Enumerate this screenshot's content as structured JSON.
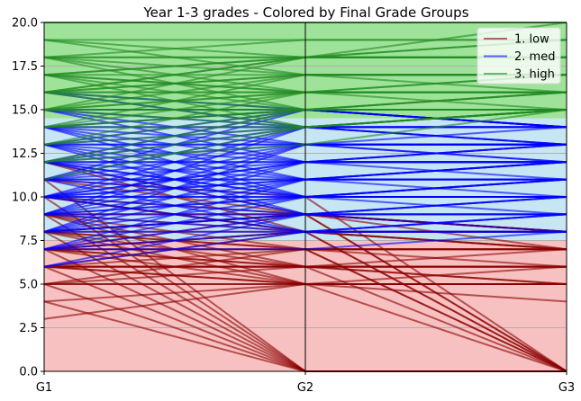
{
  "chart_data": {
    "type": "line",
    "title": "Year 1-3 grades - Colored by Final Grade Groups",
    "xlabel": "",
    "ylabel": "",
    "categories": [
      "G1",
      "G2",
      "G3"
    ],
    "ylim": [
      0.0,
      20.0
    ],
    "yticks": [
      "0.0",
      "2.5",
      "5.0",
      "7.5",
      "10.0",
      "12.5",
      "15.0",
      "17.5",
      "20.0"
    ],
    "grid_horizontal": true,
    "legend_position": "top-right",
    "bands": [
      {
        "group": "1. low",
        "from": 0,
        "to": 7.5,
        "color": "#f7c1c1"
      },
      {
        "group": "2. med",
        "from": 7.5,
        "to": 14.5,
        "color": "#c5e6f2"
      },
      {
        "group": "3. high",
        "from": 14.5,
        "to": 20,
        "color": "#9fe39a"
      }
    ],
    "groups": [
      {
        "name": "1. low",
        "color": "#8b0000",
        "lines": [
          [
            3,
            5,
            5
          ],
          [
            4,
            0,
            0
          ],
          [
            5,
            0,
            0
          ],
          [
            5,
            5,
            5
          ],
          [
            5,
            6,
            6
          ],
          [
            5,
            5,
            4
          ],
          [
            6,
            5,
            5
          ],
          [
            6,
            6,
            6
          ],
          [
            6,
            7,
            7
          ],
          [
            6,
            6,
            5
          ],
          [
            6,
            0,
            0
          ],
          [
            6,
            5,
            6
          ],
          [
            6,
            6,
            7
          ],
          [
            7,
            0,
            0
          ],
          [
            7,
            6,
            6
          ],
          [
            7,
            7,
            7
          ],
          [
            7,
            8,
            7
          ],
          [
            7,
            5,
            5
          ],
          [
            7,
            6,
            5
          ],
          [
            8,
            0,
            0
          ],
          [
            8,
            7,
            7
          ],
          [
            8,
            8,
            8
          ],
          [
            8,
            6,
            6
          ],
          [
            8,
            5,
            5
          ],
          [
            8,
            9,
            8
          ],
          [
            9,
            0,
            0
          ],
          [
            9,
            8,
            8
          ],
          [
            9,
            7,
            7
          ],
          [
            9,
            9,
            8
          ],
          [
            9,
            6,
            6
          ],
          [
            10,
            8,
            8
          ],
          [
            10,
            9,
            7
          ],
          [
            10,
            0,
            0
          ],
          [
            11,
            0,
            0
          ],
          [
            12,
            9,
            8
          ],
          [
            12,
            8,
            7
          ],
          [
            11,
            9,
            8
          ],
          [
            6,
            8,
            7
          ],
          [
            7,
            9,
            8
          ],
          [
            5,
            7,
            6
          ],
          [
            4,
            5,
            5
          ],
          [
            9,
            5,
            0
          ],
          [
            8,
            7,
            0
          ],
          [
            7,
            7,
            0
          ],
          [
            10,
            8,
            0
          ],
          [
            6,
            6,
            0
          ],
          [
            9,
            9,
            0
          ],
          [
            11,
            10,
            0
          ],
          [
            7,
            8,
            0
          ],
          [
            8,
            9,
            0
          ]
        ]
      },
      {
        "name": "2. med",
        "color": "#0000ff",
        "lines": [
          [
            6,
            8,
            9
          ],
          [
            7,
            8,
            8
          ],
          [
            7,
            9,
            9
          ],
          [
            7,
            7,
            8
          ],
          [
            7,
            10,
            10
          ],
          [
            8,
            9,
            9
          ],
          [
            8,
            8,
            9
          ],
          [
            8,
            10,
            10
          ],
          [
            8,
            11,
            11
          ],
          [
            8,
            9,
            10
          ],
          [
            9,
            9,
            10
          ],
          [
            9,
            10,
            10
          ],
          [
            9,
            11,
            11
          ],
          [
            9,
            10,
            11
          ],
          [
            9,
            12,
            12
          ],
          [
            9,
            8,
            9
          ],
          [
            10,
            10,
            10
          ],
          [
            10,
            11,
            11
          ],
          [
            10,
            12,
            12
          ],
          [
            10,
            11,
            12
          ],
          [
            10,
            10,
            11
          ],
          [
            10,
            13,
            13
          ],
          [
            10,
            9,
            10
          ],
          [
            10,
            12,
            13
          ],
          [
            11,
            11,
            11
          ],
          [
            11,
            12,
            12
          ],
          [
            11,
            13,
            13
          ],
          [
            11,
            10,
            11
          ],
          [
            11,
            11,
            12
          ],
          [
            11,
            14,
            14
          ],
          [
            12,
            12,
            12
          ],
          [
            12,
            13,
            13
          ],
          [
            12,
            11,
            12
          ],
          [
            12,
            12,
            13
          ],
          [
            12,
            14,
            14
          ],
          [
            12,
            10,
            10
          ],
          [
            13,
            13,
            13
          ],
          [
            13,
            14,
            14
          ],
          [
            13,
            12,
            13
          ],
          [
            13,
            11,
            12
          ],
          [
            13,
            13,
            14
          ],
          [
            13,
            15,
            14
          ],
          [
            14,
            14,
            14
          ],
          [
            14,
            13,
            13
          ],
          [
            14,
            12,
            12
          ],
          [
            14,
            14,
            13
          ],
          [
            14,
            15,
            14
          ],
          [
            15,
            14,
            14
          ],
          [
            15,
            13,
            13
          ],
          [
            15,
            15,
            14
          ],
          [
            16,
            14,
            13
          ],
          [
            16,
            15,
            14
          ],
          [
            12,
            9,
            9
          ],
          [
            11,
            8,
            8
          ],
          [
            10,
            8,
            8
          ],
          [
            13,
            10,
            10
          ],
          [
            14,
            11,
            11
          ],
          [
            9,
            13,
            12
          ],
          [
            8,
            12,
            11
          ],
          [
            7,
            11,
            10
          ],
          [
            6,
            9,
            8
          ],
          [
            15,
            12,
            12
          ],
          [
            12,
            15,
            14
          ],
          [
            11,
            15,
            14
          ],
          [
            10,
            14,
            14
          ],
          [
            9,
            14,
            13
          ],
          [
            8,
            13,
            12
          ],
          [
            13,
            9,
            9
          ],
          [
            14,
            10,
            9
          ],
          [
            12,
            10,
            11
          ]
        ]
      },
      {
        "name": "3. high",
        "color": "#228b22",
        "lines": [
          [
            12,
            15,
            15
          ],
          [
            13,
            15,
            15
          ],
          [
            13,
            16,
            16
          ],
          [
            14,
            15,
            15
          ],
          [
            14,
            16,
            16
          ],
          [
            14,
            17,
            17
          ],
          [
            14,
            15,
            16
          ],
          [
            15,
            15,
            15
          ],
          [
            15,
            16,
            16
          ],
          [
            15,
            17,
            17
          ],
          [
            15,
            16,
            15
          ],
          [
            15,
            18,
            18
          ],
          [
            15,
            15,
            16
          ],
          [
            16,
            16,
            16
          ],
          [
            16,
            17,
            17
          ],
          [
            16,
            18,
            18
          ],
          [
            16,
            15,
            15
          ],
          [
            16,
            16,
            17
          ],
          [
            16,
            17,
            16
          ],
          [
            17,
            17,
            17
          ],
          [
            17,
            18,
            18
          ],
          [
            17,
            16,
            16
          ],
          [
            17,
            15,
            15
          ],
          [
            17,
            18,
            19
          ],
          [
            17,
            16,
            17
          ],
          [
            18,
            18,
            18
          ],
          [
            18,
            17,
            17
          ],
          [
            18,
            16,
            16
          ],
          [
            18,
            18,
            19
          ],
          [
            18,
            19,
            19
          ],
          [
            19,
            18,
            18
          ],
          [
            19,
            19,
            19
          ],
          [
            19,
            17,
            17
          ],
          [
            12,
            14,
            15
          ],
          [
            13,
            14,
            15
          ],
          [
            14,
            14,
            15
          ],
          [
            16,
            14,
            15
          ],
          [
            17,
            14,
            15
          ],
          [
            18,
            15,
            16
          ],
          [
            11,
            14,
            15
          ],
          [
            20,
            20,
            20
          ],
          [
            16,
            18,
            20
          ],
          [
            15,
            14,
            15
          ],
          [
            12,
            13,
            15
          ]
        ]
      }
    ]
  }
}
